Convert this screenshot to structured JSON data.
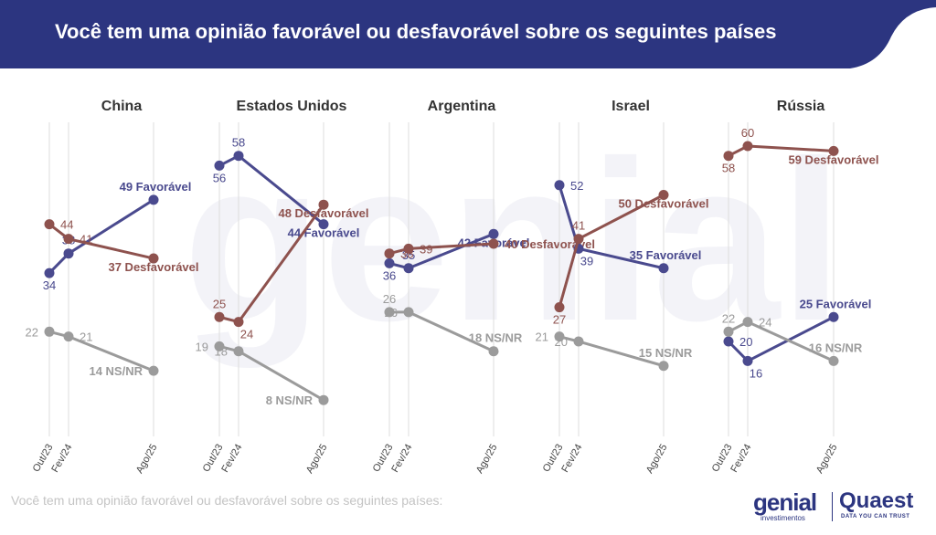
{
  "header": {
    "title": "Você tem uma opinião favorável ou desfavorável sobre os seguintes países"
  },
  "footer": {
    "text": "Você tem uma opinião favorável ou desfavorável sobre os seguintes países:"
  },
  "logos": {
    "genial": "genial",
    "genial_sub": "investimentos",
    "quaest": "Quaest",
    "quaest_sub": "DATA YOU CAN TRUST"
  },
  "colors": {
    "header_bg": "#2c3580",
    "favoravel": "#4a4a8e",
    "desfavoravel": "#8e524e",
    "nsnr": "#9b9b9b",
    "gridline": "#dcdcdc"
  },
  "chart_data": [
    {
      "type": "line",
      "title": "China",
      "x": [
        "Out/23",
        "Fev/24",
        "Ago/25"
      ],
      "series": [
        {
          "name": "Favorável",
          "values": [
            34,
            38,
            49
          ]
        },
        {
          "name": "Desfavorável",
          "values": [
            44,
            41,
            37
          ]
        },
        {
          "name": "NS/NR",
          "values": [
            22,
            21,
            14
          ]
        }
      ]
    },
    {
      "type": "line",
      "title": "Estados Unidos",
      "x": [
        "Out/23",
        "Fev/24",
        "Ago/25"
      ],
      "series": [
        {
          "name": "Favorável",
          "values": [
            56,
            58,
            44
          ]
        },
        {
          "name": "Desfavorável",
          "values": [
            25,
            24,
            48
          ]
        },
        {
          "name": "NS/NR",
          "values": [
            19,
            18,
            8
          ]
        }
      ]
    },
    {
      "type": "line",
      "title": "Argentina",
      "x": [
        "Out/23",
        "Fev/24",
        "Ago/25"
      ],
      "series": [
        {
          "name": "Favorável",
          "values": [
            36,
            35,
            42
          ]
        },
        {
          "name": "Desfavorável",
          "values": [
            38,
            39,
            40
          ]
        },
        {
          "name": "NS/NR",
          "values": [
            26,
            26,
            18
          ]
        }
      ]
    },
    {
      "type": "line",
      "title": "Israel",
      "x": [
        "Out/23",
        "Fev/24",
        "Ago/25"
      ],
      "series": [
        {
          "name": "Favorável",
          "values": [
            52,
            39,
            35
          ]
        },
        {
          "name": "Desfavorável",
          "values": [
            27,
            41,
            50
          ]
        },
        {
          "name": "NS/NR",
          "values": [
            21,
            20,
            15
          ]
        }
      ]
    },
    {
      "type": "line",
      "title": "Rússia",
      "x": [
        "Out/23",
        "Fev/24",
        "Ago/25"
      ],
      "series": [
        {
          "name": "Favorável",
          "values": [
            20,
            16,
            25
          ]
        },
        {
          "name": "Desfavorável",
          "values": [
            58,
            60,
            59
          ]
        },
        {
          "name": "NS/NR",
          "values": [
            22,
            24,
            16
          ]
        }
      ]
    }
  ]
}
